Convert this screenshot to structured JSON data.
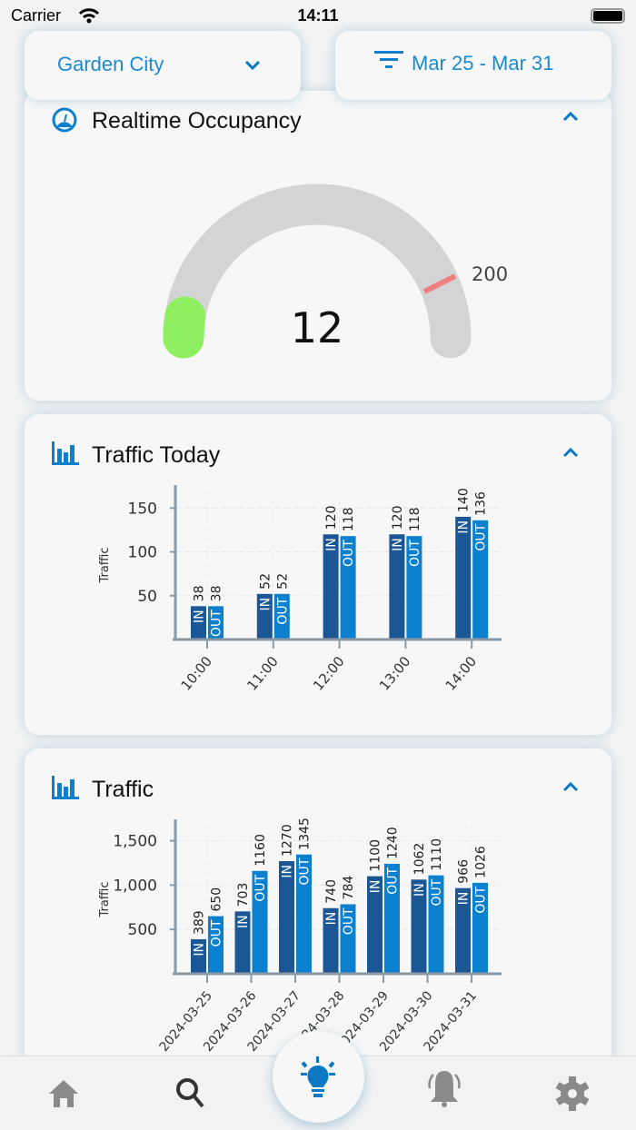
{
  "status": {
    "carrier": "Carrier",
    "time": "14:11"
  },
  "header": {
    "location": "Garden City",
    "date_range": "Mar 25 -  Mar 31"
  },
  "occupancy": {
    "title": "Realtime Occupancy",
    "value": "12",
    "max_label": "200",
    "current": 12,
    "colors": {
      "track": "#d4d4d4",
      "fill": "#8ef060",
      "marker": "#f08080"
    }
  },
  "chart_data": [
    {
      "type": "bar",
      "title": "Traffic Today",
      "ylabel": "Traffic",
      "categories": [
        "10:00",
        "11:00",
        "12:00",
        "13:00",
        "14:00"
      ],
      "yticks": [
        "50",
        "100",
        "150"
      ],
      "ylim": [
        0,
        170
      ],
      "series": [
        {
          "name": "IN",
          "values": [
            38,
            52,
            120,
            120,
            140
          ],
          "color": "#1a5794"
        },
        {
          "name": "OUT",
          "values": [
            38,
            52,
            118,
            118,
            136
          ],
          "color": "#0a80cf"
        }
      ]
    },
    {
      "type": "bar",
      "title": "Traffic",
      "ylabel": "Traffic",
      "categories": [
        "2024-03-25",
        "2024-03-26",
        "2024-03-27",
        "2024-03-28",
        "2024-03-29",
        "2024-03-30",
        "2024-03-31"
      ],
      "yticks": [
        "500",
        "1,000",
        "1,500"
      ],
      "ylim": [
        0,
        1680
      ],
      "series": [
        {
          "name": "IN",
          "values": [
            389,
            703,
            1270,
            740,
            1100,
            1062,
            966
          ],
          "color": "#1a5794"
        },
        {
          "name": "OUT",
          "values": [
            650,
            1160,
            1345,
            784,
            1240,
            1110,
            1026
          ],
          "color": "#0a80cf"
        }
      ]
    }
  ],
  "nav": [
    "home-icon",
    "search-icon",
    "lightbulb-icon",
    "bell-icon",
    "gear-icon"
  ]
}
